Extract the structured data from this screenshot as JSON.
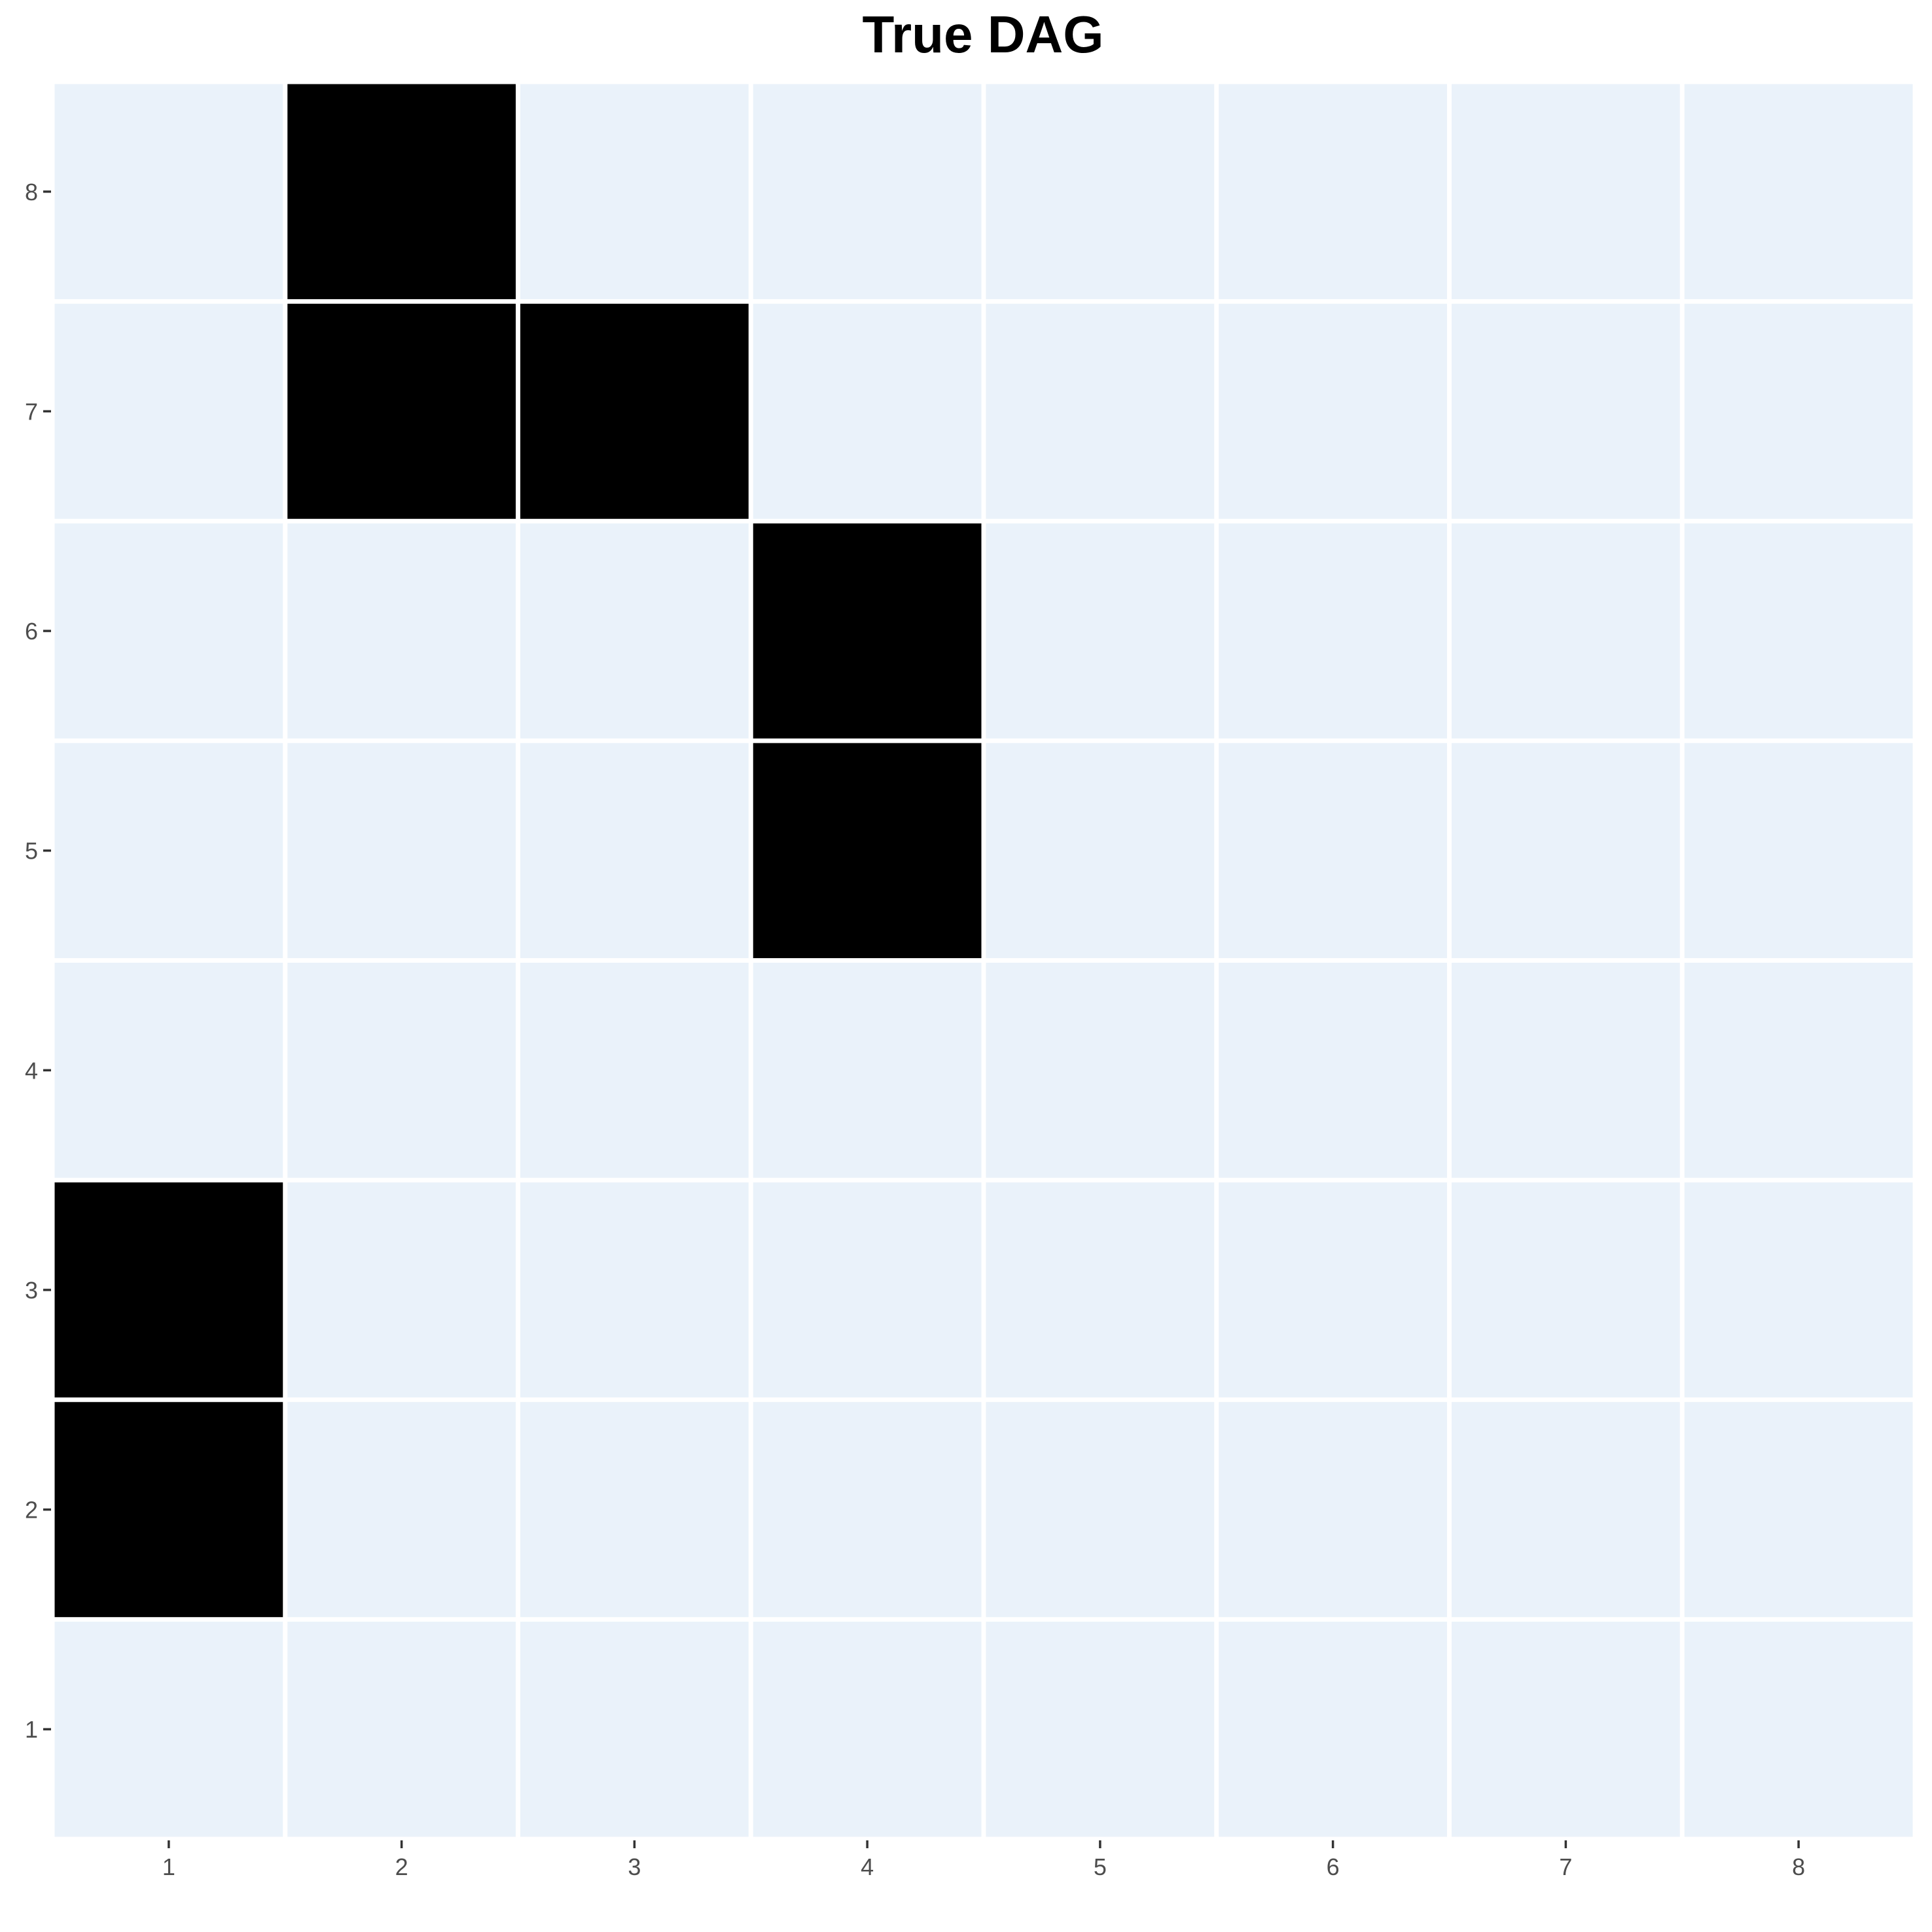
{
  "chart_data": {
    "type": "heatmap",
    "title": "True DAG",
    "xlabel": "",
    "ylabel": "",
    "x_categories": [
      "1",
      "2",
      "3",
      "4",
      "5",
      "6",
      "7",
      "8"
    ],
    "y_categories": [
      "1",
      "2",
      "3",
      "4",
      "5",
      "6",
      "7",
      "8"
    ],
    "values": [
      [
        0,
        0,
        0,
        0,
        0,
        0,
        0,
        0
      ],
      [
        1,
        0,
        0,
        0,
        0,
        0,
        0,
        0
      ],
      [
        1,
        0,
        0,
        0,
        0,
        0,
        0,
        0
      ],
      [
        0,
        0,
        0,
        0,
        0,
        0,
        0,
        0
      ],
      [
        0,
        0,
        0,
        1,
        0,
        0,
        0,
        0
      ],
      [
        0,
        0,
        0,
        1,
        0,
        0,
        0,
        0
      ],
      [
        0,
        1,
        1,
        0,
        0,
        0,
        0,
        0
      ],
      [
        0,
        1,
        0,
        0,
        0,
        0,
        0,
        0
      ]
    ],
    "value_colors": {
      "0": "#eaf2fa",
      "1": "#000000"
    },
    "cell_border_color": "#ffffff",
    "legend": "none",
    "grid": false
  }
}
